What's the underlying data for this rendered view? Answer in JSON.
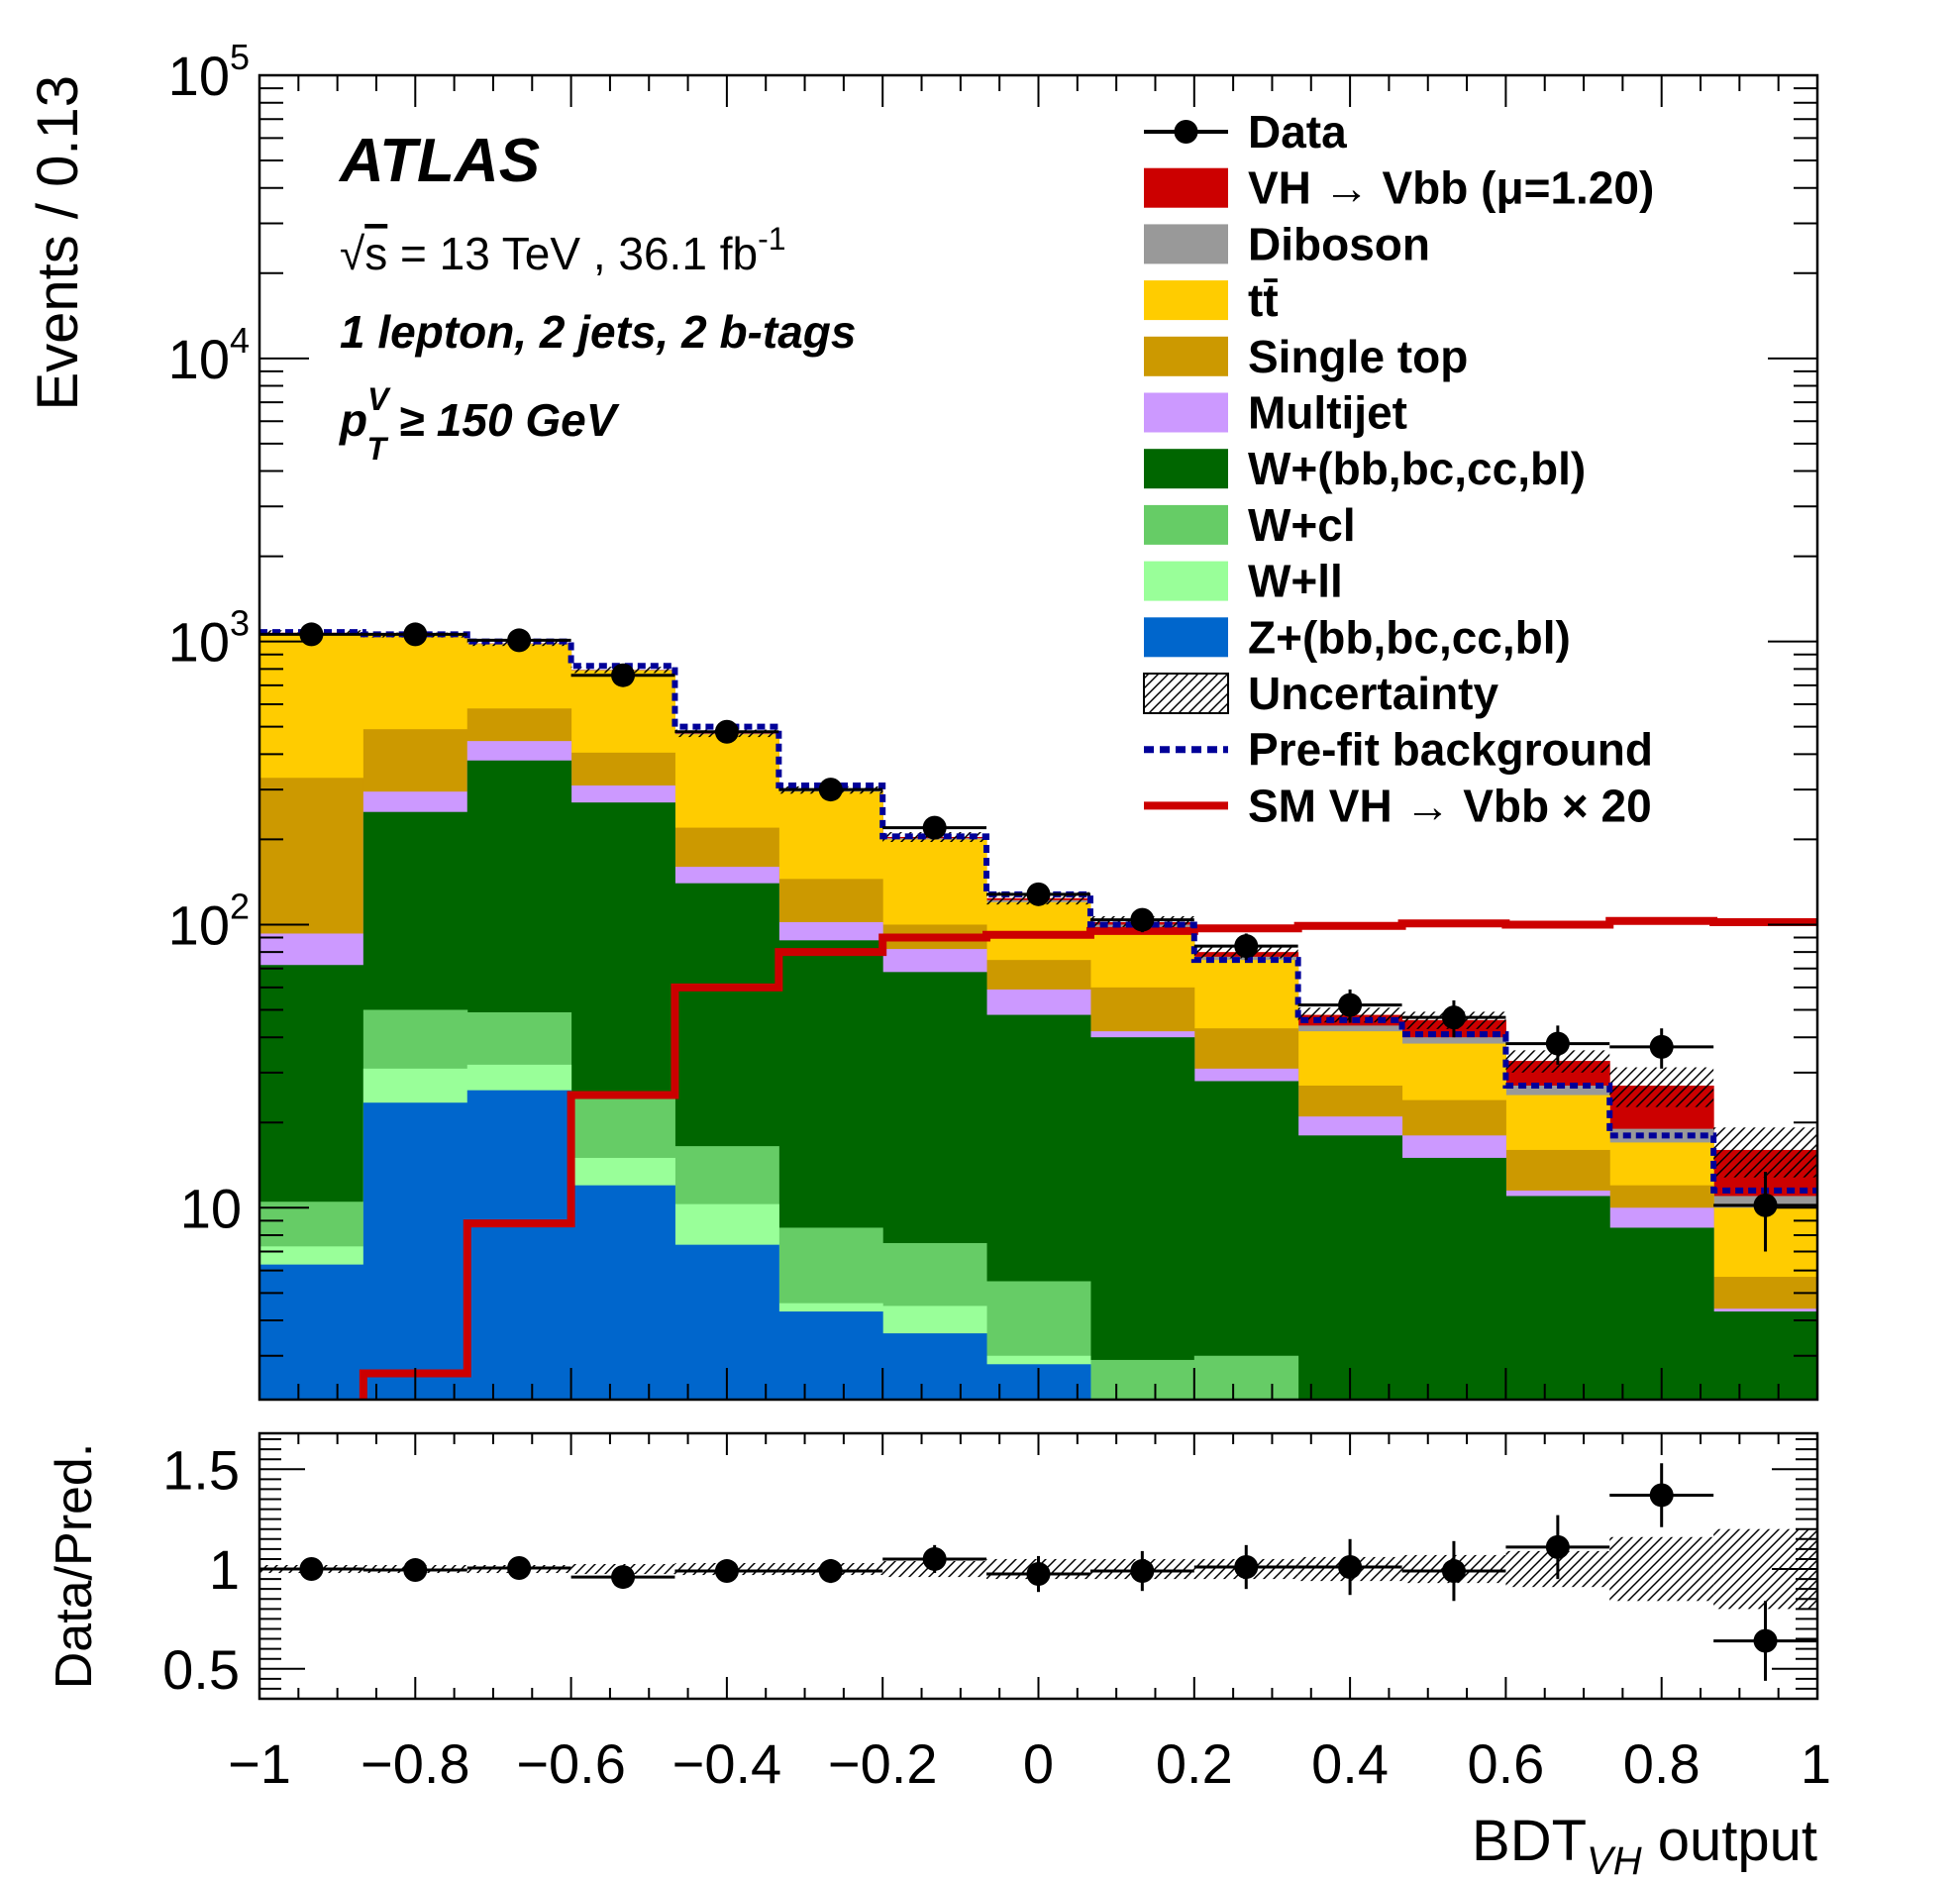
{
  "chart_data": {
    "type": "bar",
    "subtype": "stacked histogram with data points and ratio panel",
    "experiment_label": "ATLAS",
    "energy_label": "√s = 13 TeV , 36.1 fb⁻¹",
    "energy_parts": {
      "sqrt": "√",
      "s": "s",
      "mid": " = 13 TeV , 36.1 fb",
      "sup": "-1"
    },
    "region_label": "1 lepton, 2 jets, 2 b-tags",
    "pt_label": {
      "p": "p",
      "sup": "V",
      "sub": "T",
      "rest": " ≥ 150 GeV"
    },
    "ylabel": "Events / 0.13",
    "ratio_ylabel": "Data/Pred.",
    "xlabel_parts": {
      "main": "BDT",
      "sub": "VH",
      "rest": " output"
    },
    "xlim": [
      -1,
      1
    ],
    "ylim_log": [
      2.1,
      100000
    ],
    "ratio_ylim": [
      0.35,
      1.68
    ],
    "x_ticks": [
      -1,
      -0.8,
      -0.6,
      -0.4,
      -0.2,
      0,
      0.2,
      0.4,
      0.6,
      0.8,
      1
    ],
    "x_tick_labels": [
      "−1",
      "−0.8",
      "−0.6",
      "−0.4",
      "−0.2",
      "0",
      "0.2",
      "0.4",
      "0.6",
      "0.8",
      "1"
    ],
    "y_tick_labels": [
      {
        "value": 10,
        "label": "10"
      },
      {
        "value": 100,
        "label": "10",
        "exp": "2"
      },
      {
        "value": 1000,
        "label": "10",
        "exp": "3"
      },
      {
        "value": 10000,
        "label": "10",
        "exp": "4"
      },
      {
        "value": 100000,
        "label": "10",
        "exp": "5"
      }
    ],
    "ratio_tick_labels": [
      {
        "value": 0.5,
        "label": "0.5"
      },
      {
        "value": 1,
        "label": "1"
      },
      {
        "value": 1.5,
        "label": "1.5"
      }
    ],
    "bin_edges": [
      -1,
      -0.8667,
      -0.7333,
      -0.6,
      -0.4667,
      -0.3333,
      -0.2,
      -0.0667,
      0.0667,
      0.2,
      0.3333,
      0.4667,
      0.6,
      0.7333,
      0.8667,
      1
    ],
    "bin_centers": [
      -0.9333,
      -0.8,
      -0.6667,
      -0.5333,
      -0.4,
      -0.2667,
      -0.1333,
      0,
      0.1333,
      0.2667,
      0.4,
      0.5333,
      0.6667,
      0.8,
      0.9333
    ],
    "stack_order_bottom_to_top": [
      "Z+(bb,bc,cc,bl)",
      "W+ll",
      "W+cl",
      "W+(bb,bc,cc,bl)",
      "Multijet",
      "Single top",
      "tt̄",
      "Diboson",
      "VH → Vbb (μ=1.20)"
    ],
    "stack_boundaries": [
      {
        "name": "Z+(bb,bc,cc,bl)",
        "color": "#0066cc",
        "values": [
          6.3,
          23.5,
          26,
          12,
          7.4,
          4.3,
          3.6,
          2.8,
          2.1,
          2.1,
          2.1,
          2.1,
          2.1,
          2.1,
          2.1
        ]
      },
      {
        "name": "W+ll",
        "color": "#99ff99",
        "values": [
          7.3,
          31,
          32,
          15,
          10.3,
          4.6,
          4.5,
          3,
          2.1,
          2.1,
          2.1,
          2.1,
          2.1,
          2.1,
          2.1
        ]
      },
      {
        "name": "W+cl",
        "color": "#66cc66",
        "values": [
          10.5,
          50,
          49,
          25,
          16.5,
          8.5,
          7.5,
          5.5,
          2.9,
          3,
          2.1,
          2.1,
          2.1,
          2.1,
          2.1
        ]
      },
      {
        "name": "W+(bb,bc,cc,bl)",
        "color": "#006600",
        "values": [
          72,
          250,
          380,
          270,
          140,
          88,
          68,
          48,
          40,
          28,
          18,
          15,
          11,
          8.5,
          4.3
        ]
      },
      {
        "name": "Multijet",
        "color": "#cc99ff",
        "values": [
          93,
          295,
          445,
          310,
          160,
          102,
          82,
          59,
          42,
          31,
          21,
          18,
          11.5,
          10,
          4.4
        ]
      },
      {
        "name": "Single top",
        "color": "#cc9900",
        "values": [
          330,
          490,
          580,
          405,
          220,
          145,
          100,
          75,
          60,
          43,
          27,
          24,
          16,
          12,
          5.7
        ]
      },
      {
        "name": "tt̄",
        "color": "#ffcc00",
        "values": [
          1070,
          1050,
          980,
          790,
          470,
          295,
          200,
          120,
          98,
          75,
          42,
          38,
          25,
          17,
          10
        ]
      },
      {
        "name": "Diboson",
        "color": "#999999",
        "values": [
          1072,
          1052,
          982,
          792,
          472,
          297,
          202,
          122,
          100,
          77,
          44,
          40,
          27,
          19,
          11
        ]
      },
      {
        "name": "VH → Vbb (μ=1.20)",
        "color": "#cc0000",
        "values": [
          1074,
          1054,
          984,
          794,
          474,
          299,
          204,
          124,
          102,
          80,
          48,
          46,
          33,
          27,
          16
        ]
      }
    ],
    "prefit_background": [
      1080,
      1060,
      1000,
      820,
      500,
      310,
      205,
      128,
      100,
      75,
      46,
      41,
      27,
      18,
      11.5
    ],
    "sm_vh_x20": [
      1.9,
      2.6,
      8.8,
      25,
      60,
      80,
      90,
      92,
      95,
      97,
      99,
      101,
      100,
      103,
      102
    ],
    "data": {
      "values": [
        1060,
        1060,
        1010,
        760,
        480,
        300,
        220,
        128,
        104,
        84,
        52,
        47,
        38,
        37,
        10.2
      ],
      "errors": [
        33,
        33,
        32,
        28,
        22,
        17,
        15,
        11,
        10,
        9,
        7,
        7,
        6,
        6,
        3.2
      ]
    },
    "ratio": {
      "values": [
        1.0,
        0.995,
        1.005,
        0.96,
        0.99,
        0.99,
        1.05,
        0.975,
        0.99,
        1.01,
        1.01,
        0.99,
        1.11,
        1.37,
        0.64
      ],
      "errors": [
        0.03,
        0.03,
        0.03,
        0.035,
        0.045,
        0.06,
        0.07,
        0.09,
        0.1,
        0.11,
        0.14,
        0.15,
        0.16,
        0.16,
        0.2
      ],
      "uncertainty": [
        0.02,
        0.02,
        0.02,
        0.025,
        0.03,
        0.03,
        0.04,
        0.05,
        0.05,
        0.05,
        0.06,
        0.07,
        0.09,
        0.16,
        0.2
      ]
    },
    "legend": [
      {
        "label": "Data",
        "style": "marker"
      },
      {
        "label": "VH → Vbb (μ=1.20)",
        "style": "fill",
        "color": "#cc0000"
      },
      {
        "label": "Diboson",
        "style": "fill",
        "color": "#999999"
      },
      {
        "label": "tt̄",
        "style": "fill",
        "color": "#ffcc00"
      },
      {
        "label": "Single top",
        "style": "fill",
        "color": "#cc9900"
      },
      {
        "label": "Multijet",
        "style": "fill",
        "color": "#cc99ff"
      },
      {
        "label": "W+(bb,bc,cc,bl)",
        "style": "fill",
        "color": "#006600"
      },
      {
        "label": "W+cl",
        "style": "fill",
        "color": "#66cc66"
      },
      {
        "label": "W+ll",
        "style": "fill",
        "color": "#99ff99"
      },
      {
        "label": "Z+(bb,bc,cc,bl)",
        "style": "fill",
        "color": "#0066cc"
      },
      {
        "label": "Uncertainty",
        "style": "hatch"
      },
      {
        "label": "Pre-fit background",
        "style": "dash",
        "color": "#000099"
      },
      {
        "label": "SM VH → Vbb × 20",
        "style": "line",
        "color": "#cc0000"
      }
    ],
    "legend_position": "top-right"
  }
}
